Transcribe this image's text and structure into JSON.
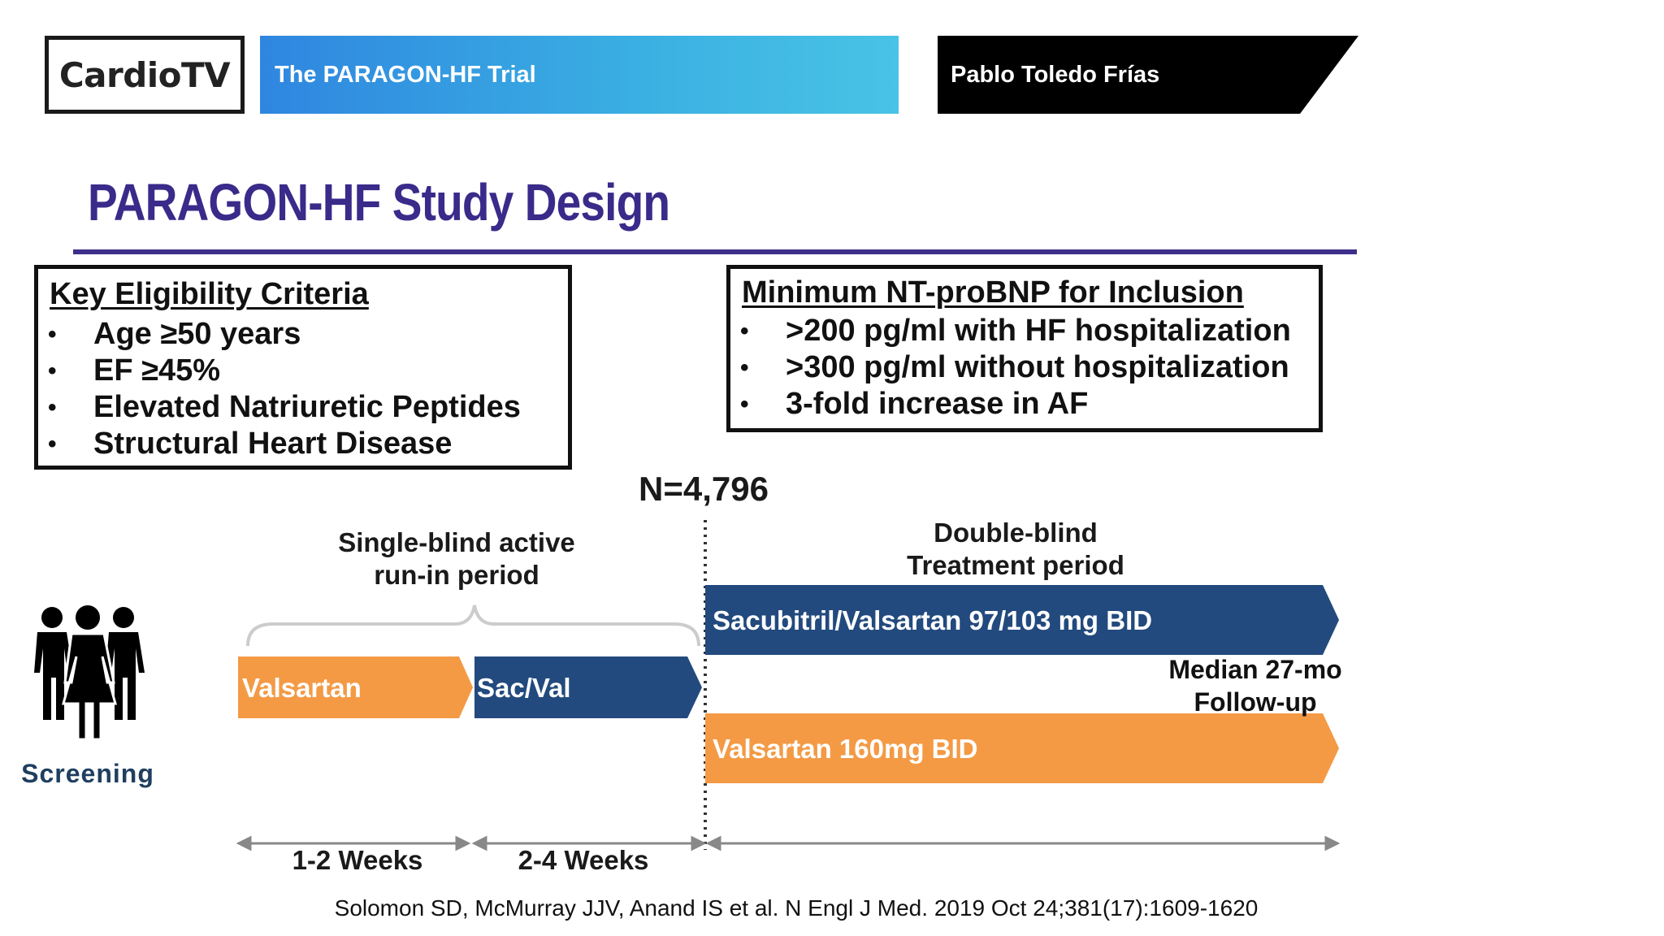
{
  "header": {
    "logo_text": "CardioTV",
    "video_title": "The PARAGON-HF Trial",
    "speaker_name": "Pablo Toledo Frías"
  },
  "slide": {
    "title": "PARAGON-HF Study Design",
    "eligibility": {
      "heading": "Key Eligibility Criteria",
      "items": [
        "Age ≥50 years",
        "EF ≥45%",
        "Elevated Natriuretic Peptides",
        "Structural Heart Disease"
      ]
    },
    "ntprobnp": {
      "heading": "Minimum NT-proBNP for Inclusion",
      "items": [
        ">200 pg/ml with HF hospitalization",
        ">300 pg/ml without hospitalization",
        "3-fold increase in AF"
      ]
    },
    "diagram": {
      "n_label": "N=4,796",
      "screening_label": "Screening",
      "runin_label_line1": "Single-blind active",
      "runin_label_line2": "run-in period",
      "treatment_label_line1": "Double-blind",
      "treatment_label_line2": "Treatment period",
      "runin_valsartan": "Valsartan",
      "runin_sacval": "Sac/Val",
      "arm_sacubitril": "Sacubitril/Valsartan 97/103 mg BID",
      "arm_valsartan": "Valsartan 160mg BID",
      "followup_line1": "Median 27-mo",
      "followup_line2": "Follow-up",
      "duration_1": "1-2 Weeks",
      "duration_2": "2-4 Weeks"
    },
    "citation": "Solomon SD, McMurray JJV, Anand IS et al. N Engl J Med. 2019 Oct 24;381(17):1609-1620"
  },
  "colors": {
    "orange": "#f49a45",
    "navy": "#224a7e",
    "title_purple": "#3a2a8a",
    "header_blue": "#2f86e0"
  }
}
